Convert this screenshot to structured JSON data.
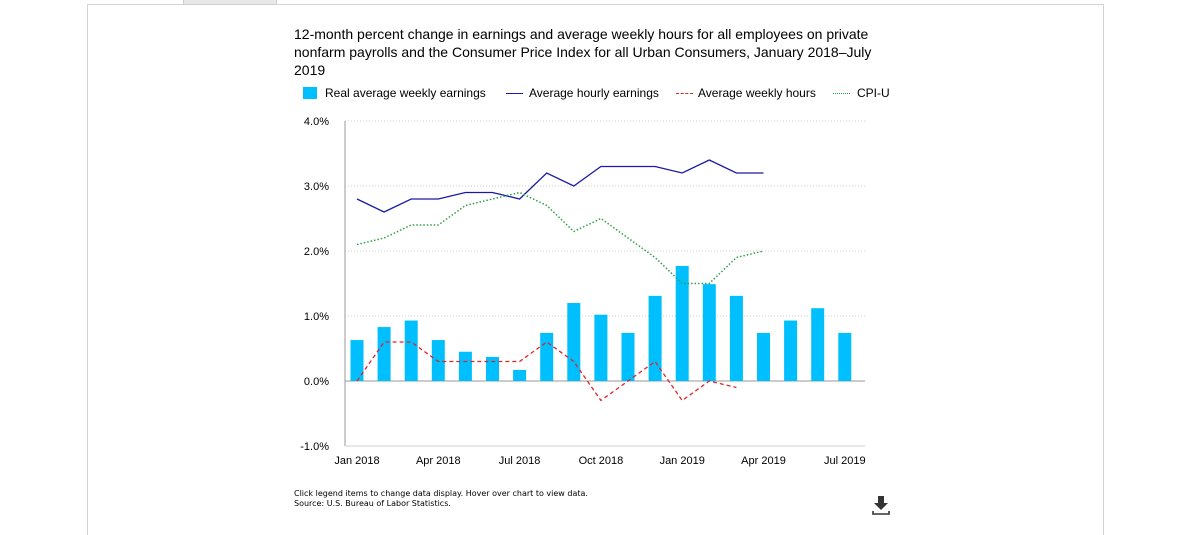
{
  "title": "12-month percent change in earnings and average weekly hours for all employees on private nonfarm payrolls and the Consumer Price Index for all Urban Consumers, January 2018–July 2019",
  "legend": {
    "bar": "Real average weekly earnings",
    "hourly": "Average hourly earnings",
    "hours": "Average weekly hours",
    "cpi": "CPI-U"
  },
  "footer": {
    "line1": "Click legend items to change data display. Hover over chart to view data.",
    "line2": "Source: U.S. Bureau of Labor Statistics."
  },
  "colors": {
    "bar": "#00bfff",
    "hourly": "#1a1aa6",
    "hours": "#e0242a",
    "cpi": "#2e9e4a"
  },
  "icons": {
    "download": "download-icon"
  },
  "chart_data": {
    "type": "bar",
    "title": "12-month percent change in earnings and average weekly hours for all employees on private nonfarm payrolls and the Consumer Price Index for all Urban Consumers, January 2018–July 2019",
    "categories": [
      "Jan 2018",
      "Feb 2018",
      "Mar 2018",
      "Apr 2018",
      "May 2018",
      "Jun 2018",
      "Jul 2018",
      "Aug 2018",
      "Sep 2018",
      "Oct 2018",
      "Nov 2018",
      "Dec 2018",
      "Jan 2019",
      "Feb 2019",
      "Mar 2019",
      "Apr 2019",
      "May 2019",
      "Jun 2019",
      "Jul 2019"
    ],
    "x_tick_labels": [
      "Jan 2018",
      "Apr 2018",
      "Jul 2018",
      "Oct 2018",
      "Jan 2019",
      "Apr 2019",
      "Jul 2019"
    ],
    "y_tick_labels": [
      "-1.0%",
      "0.0%",
      "1.0%",
      "2.0%",
      "3.0%",
      "4.0%"
    ],
    "ylim": [
      -1.0,
      4.0
    ],
    "grid": true,
    "legend_position": "top",
    "series": [
      {
        "name": "Real average weekly earnings",
        "kind": "bar",
        "values": [
          0.63,
          0.83,
          0.93,
          0.63,
          0.45,
          0.37,
          0.17,
          0.74,
          1.2,
          1.02,
          0.74,
          1.31,
          1.77,
          1.49,
          1.31,
          0.74,
          0.93,
          1.12,
          0.74
        ]
      },
      {
        "name": "Average hourly earnings",
        "kind": "line",
        "values": [
          2.8,
          2.6,
          2.8,
          2.8,
          2.9,
          2.9,
          2.8,
          3.2,
          3.0,
          3.3,
          3.3,
          3.3,
          3.2,
          3.4,
          3.2,
          3.2,
          null,
          null,
          null
        ]
      },
      {
        "name": "Average weekly hours",
        "kind": "line",
        "values": [
          0.0,
          0.6,
          0.6,
          0.3,
          0.3,
          0.3,
          0.3,
          0.6,
          0.3,
          -0.3,
          0.0,
          0.3,
          -0.3,
          0.0,
          -0.1,
          null,
          null,
          null,
          null
        ]
      },
      {
        "name": "CPI-U",
        "kind": "line",
        "values": [
          2.1,
          2.2,
          2.4,
          2.4,
          2.7,
          2.8,
          2.9,
          2.7,
          2.3,
          2.5,
          2.2,
          1.9,
          1.5,
          1.5,
          1.9,
          2.0,
          null,
          null,
          null
        ]
      }
    ]
  }
}
